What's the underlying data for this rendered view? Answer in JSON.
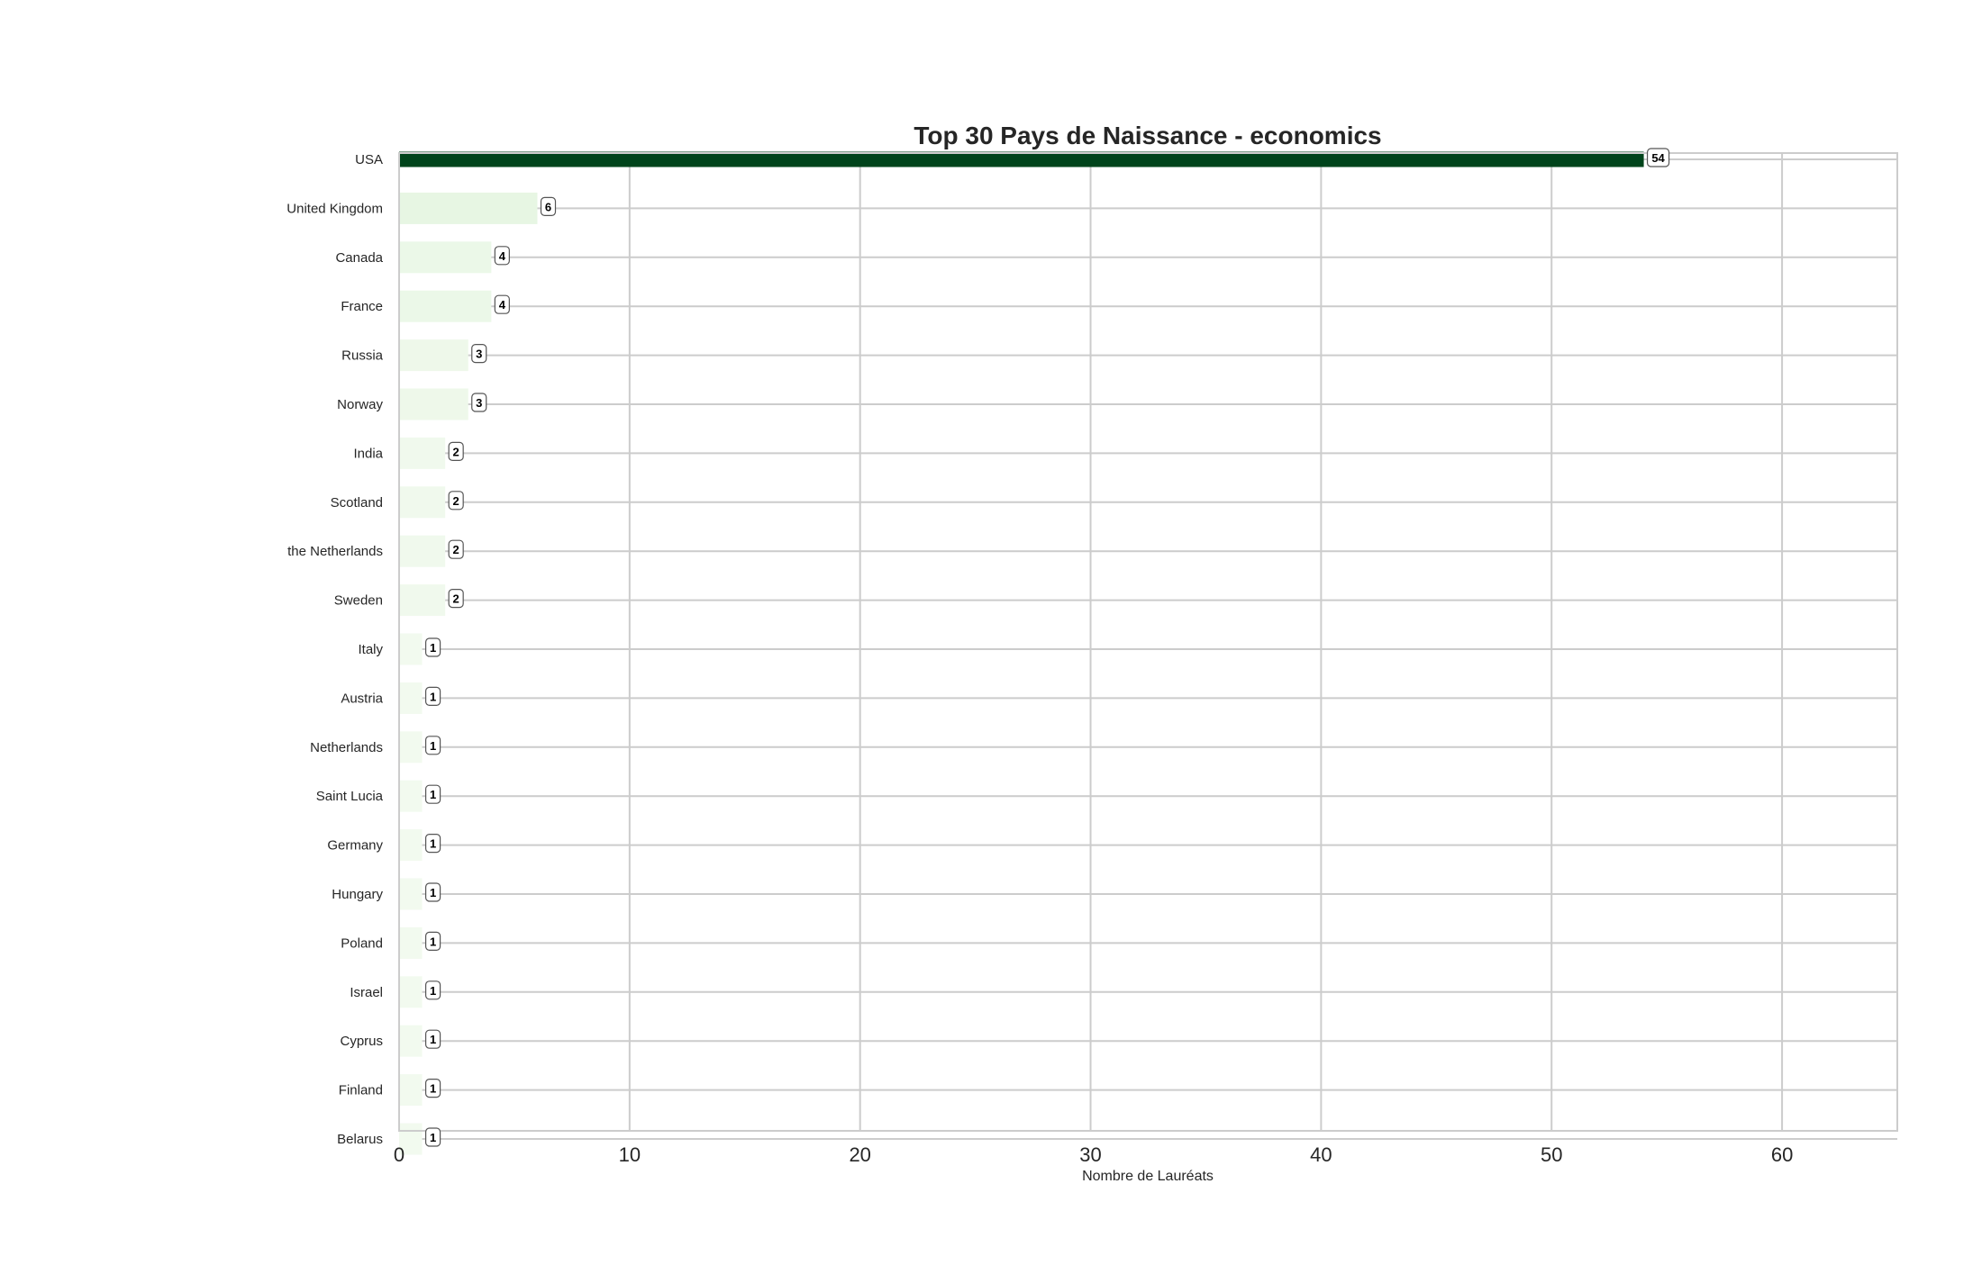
{
  "chart_data": {
    "type": "bar",
    "orientation": "horizontal",
    "title": "Top 30 Pays de Naissance - economics",
    "xlabel": "Nombre de Lauréats",
    "ylabel": "",
    "xlim": [
      0,
      65
    ],
    "xticks": [
      0,
      10,
      20,
      30,
      40,
      50,
      60
    ],
    "grid": true,
    "categories": [
      "USA",
      "United Kingdom",
      "Canada",
      "France",
      "Russia",
      "Norway",
      "India",
      "Scotland",
      "the Netherlands",
      "Sweden",
      "Italy",
      "Austria",
      "Netherlands",
      "Saint Lucia",
      "Germany",
      "Hungary",
      "Poland",
      "Israel",
      "Cyprus",
      "Finland",
      "Belarus"
    ],
    "values": [
      54,
      6,
      4,
      4,
      3,
      3,
      2,
      2,
      2,
      2,
      1,
      1,
      1,
      1,
      1,
      1,
      1,
      1,
      1,
      1,
      1
    ],
    "colormap": "Greens",
    "colors": {
      "max": "#00441b",
      "min": "#f7fcf5",
      "grid": "#cccccc",
      "text": "#262626"
    }
  }
}
